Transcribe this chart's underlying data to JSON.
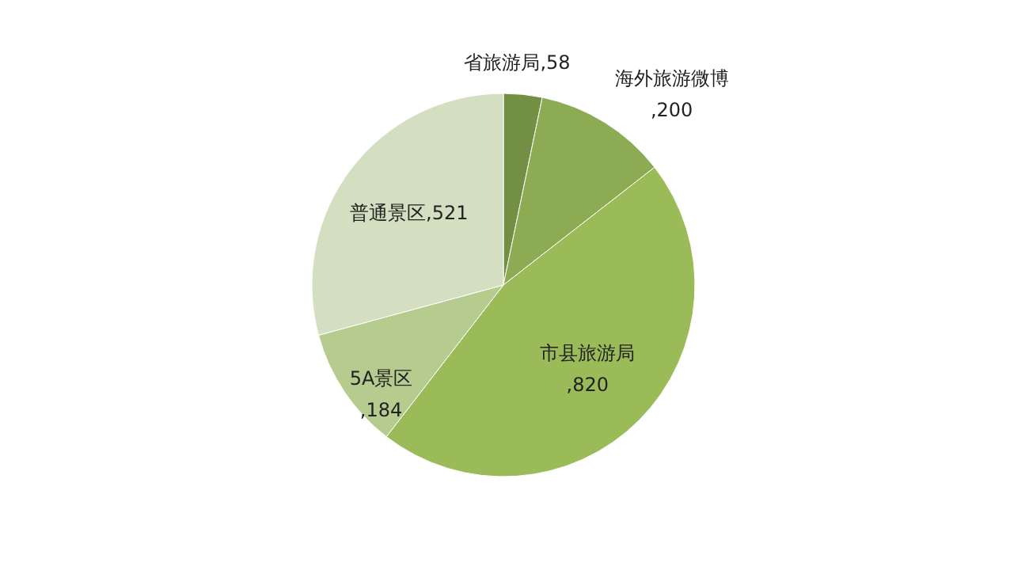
{
  "chart_data": {
    "type": "pie",
    "categories": [
      "省旅游局",
      "海外旅游微博",
      "市县旅游局",
      "5A景区",
      "普通景区"
    ],
    "values": [
      58,
      200,
      820,
      184,
      521
    ],
    "value_labels": [
      ",58",
      ",200",
      ",820",
      ",184",
      ",521"
    ],
    "colors": [
      "#728f43",
      "#8cab52",
      "#9bbb59",
      "#b6cc8f",
      "#d3dfc0"
    ]
  }
}
